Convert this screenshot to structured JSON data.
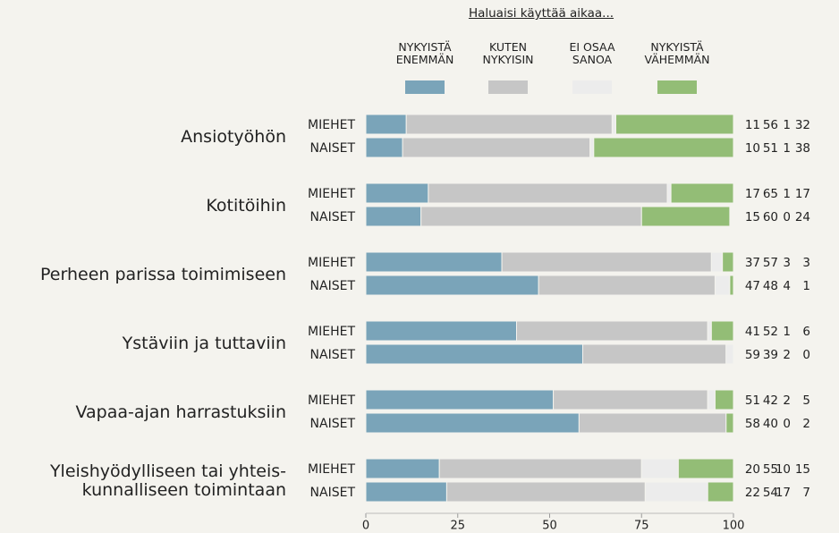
{
  "chart_data": {
    "type": "bar",
    "orientation": "horizontal",
    "stacked": true,
    "title": "Haluaisi käyttää aikaa...",
    "groups": [
      "Ansiotyöhön",
      "Kotitöihin",
      "Perheen parissa toimimiseen",
      "Ystäviin ja tuttaviin",
      "Vapaa-ajan harrastuksiin",
      "Yleishyödylliseen tai yhteis-\nkunnalliseen toimintaan"
    ],
    "categories": [
      "MIEHET",
      "NAISET",
      "MIEHET",
      "NAISET",
      "MIEHET",
      "NAISET",
      "MIEHET",
      "NAISET",
      "MIEHET",
      "NAISET",
      "MIEHET",
      "NAISET"
    ],
    "series": [
      {
        "name": "NYKYISTÄ\nENEMMÄN",
        "color": "#7aa4b9",
        "values": [
          11,
          10,
          17,
          15,
          37,
          47,
          41,
          59,
          51,
          58,
          20,
          22
        ]
      },
      {
        "name": "KUTEN\nNYKYISIN",
        "color": "#c6c6c6",
        "values": [
          56,
          51,
          65,
          60,
          57,
          48,
          52,
          39,
          42,
          40,
          55,
          54
        ]
      },
      {
        "name": "EI OSAA\nSANOA",
        "color": "#ececec",
        "values": [
          1,
          1,
          1,
          0,
          3,
          4,
          1,
          2,
          2,
          0,
          10,
          17
        ]
      },
      {
        "name": "NYKYISTÄ\nVÄHEMMÄN",
        "color": "#93bd76",
        "values": [
          32,
          38,
          17,
          24,
          3,
          1,
          6,
          0,
          5,
          2,
          15,
          7
        ]
      }
    ],
    "xlim": [
      0,
      100
    ],
    "xticks": [
      0,
      25,
      50,
      75,
      100
    ]
  }
}
